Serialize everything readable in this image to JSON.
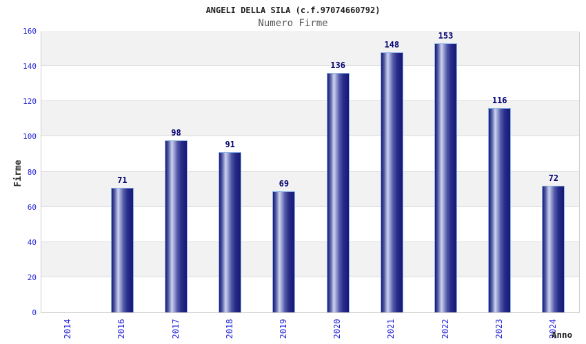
{
  "chart_data": {
    "type": "bar",
    "title": "ANGELI DELLA SILA (c.f.97074660792)",
    "subtitle": "Numero Firme",
    "xlabel": "Anno",
    "ylabel": "Firme",
    "categories": [
      "2014",
      "2016",
      "2017",
      "2018",
      "2019",
      "2020",
      "2021",
      "2022",
      "2023",
      "2024"
    ],
    "values": [
      0,
      71,
      98,
      91,
      69,
      136,
      148,
      153,
      116,
      72
    ],
    "ylim": [
      0,
      160
    ],
    "ytick_step": 20,
    "yticks": [
      0,
      20,
      40,
      60,
      80,
      100,
      120,
      140,
      160
    ],
    "grid": "horizontal-bands-alternating",
    "legend_position": "none",
    "bar_value_labels_shown": true,
    "colors": {
      "bar_dark": "#18186e",
      "bar_highlight": "#ccd2ee",
      "bar_border": "#8ab4e8",
      "tick_label": "#2626d9",
      "value_label": "#00006e",
      "band_gray": "#f2f2f2",
      "band_white": "#ffffff",
      "grid_line": "#dcdcdc",
      "plot_border": "#cccccc",
      "title_color": "#1e1e1e",
      "subtitle_color": "#595959",
      "axis_title_color": "#1b1b1b"
    }
  }
}
